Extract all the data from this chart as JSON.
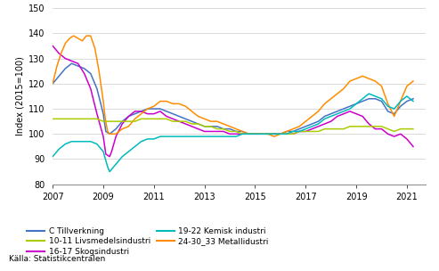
{
  "title": "",
  "ylabel": "Index (2015=100)",
  "xlabel": "",
  "source": "Källa: Statistikcentralen",
  "ylim": [
    80,
    150
  ],
  "yticks": [
    80,
    90,
    100,
    110,
    120,
    130,
    140,
    150
  ],
  "xlim": [
    2007.0,
    2021.75
  ],
  "xticks": [
    2007,
    2009,
    2011,
    2013,
    2015,
    2017,
    2019,
    2021
  ],
  "series": {
    "C Tillverkning": {
      "color": "#4472C4",
      "data": [
        [
          2007.0,
          120
        ],
        [
          2007.25,
          123
        ],
        [
          2007.5,
          126
        ],
        [
          2007.75,
          128
        ],
        [
          2008.0,
          127
        ],
        [
          2008.25,
          126
        ],
        [
          2008.5,
          124
        ],
        [
          2008.75,
          118
        ],
        [
          2009.0,
          108
        ],
        [
          2009.1,
          101
        ],
        [
          2009.25,
          100
        ],
        [
          2009.5,
          102
        ],
        [
          2009.75,
          105
        ],
        [
          2010.0,
          107
        ],
        [
          2010.25,
          108
        ],
        [
          2010.5,
          109
        ],
        [
          2010.75,
          110
        ],
        [
          2011.0,
          110
        ],
        [
          2011.25,
          110
        ],
        [
          2011.5,
          109
        ],
        [
          2011.75,
          108
        ],
        [
          2012.0,
          107
        ],
        [
          2012.25,
          106
        ],
        [
          2012.5,
          105
        ],
        [
          2012.75,
          104
        ],
        [
          2013.0,
          103
        ],
        [
          2013.25,
          103
        ],
        [
          2013.5,
          103
        ],
        [
          2013.75,
          102
        ],
        [
          2014.0,
          102
        ],
        [
          2014.25,
          101
        ],
        [
          2014.5,
          101
        ],
        [
          2014.75,
          100
        ],
        [
          2015.0,
          100
        ],
        [
          2015.25,
          100
        ],
        [
          2015.5,
          100
        ],
        [
          2015.75,
          100
        ],
        [
          2016.0,
          100
        ],
        [
          2016.25,
          101
        ],
        [
          2016.5,
          101
        ],
        [
          2016.75,
          102
        ],
        [
          2017.0,
          103
        ],
        [
          2017.25,
          104
        ],
        [
          2017.5,
          105
        ],
        [
          2017.75,
          107
        ],
        [
          2018.0,
          108
        ],
        [
          2018.25,
          109
        ],
        [
          2018.5,
          110
        ],
        [
          2018.75,
          111
        ],
        [
          2019.0,
          112
        ],
        [
          2019.25,
          113
        ],
        [
          2019.5,
          114
        ],
        [
          2019.75,
          114
        ],
        [
          2020.0,
          113
        ],
        [
          2020.25,
          109
        ],
        [
          2020.5,
          108
        ],
        [
          2020.75,
          111
        ],
        [
          2021.0,
          113
        ],
        [
          2021.25,
          114
        ]
      ]
    },
    "16-17 Skogsindustri": {
      "color": "#CC00CC",
      "data": [
        [
          2007.0,
          135
        ],
        [
          2007.25,
          132
        ],
        [
          2007.5,
          130
        ],
        [
          2007.75,
          129
        ],
        [
          2008.0,
          128
        ],
        [
          2008.25,
          124
        ],
        [
          2008.5,
          118
        ],
        [
          2008.75,
          108
        ],
        [
          2009.0,
          99
        ],
        [
          2009.1,
          92
        ],
        [
          2009.25,
          91
        ],
        [
          2009.33,
          93
        ],
        [
          2009.5,
          99
        ],
        [
          2009.75,
          104
        ],
        [
          2010.0,
          107
        ],
        [
          2010.25,
          109
        ],
        [
          2010.5,
          109
        ],
        [
          2010.75,
          108
        ],
        [
          2011.0,
          108
        ],
        [
          2011.25,
          109
        ],
        [
          2011.5,
          107
        ],
        [
          2011.75,
          106
        ],
        [
          2012.0,
          105
        ],
        [
          2012.25,
          104
        ],
        [
          2012.5,
          103
        ],
        [
          2012.75,
          102
        ],
        [
          2013.0,
          101
        ],
        [
          2013.25,
          101
        ],
        [
          2013.5,
          101
        ],
        [
          2013.75,
          101
        ],
        [
          2014.0,
          100
        ],
        [
          2014.25,
          100
        ],
        [
          2014.5,
          100
        ],
        [
          2014.75,
          100
        ],
        [
          2015.0,
          100
        ],
        [
          2015.25,
          100
        ],
        [
          2015.5,
          100
        ],
        [
          2015.75,
          100
        ],
        [
          2016.0,
          100
        ],
        [
          2016.25,
          100
        ],
        [
          2016.5,
          100
        ],
        [
          2016.75,
          101
        ],
        [
          2017.0,
          101
        ],
        [
          2017.25,
          102
        ],
        [
          2017.5,
          103
        ],
        [
          2017.75,
          104
        ],
        [
          2018.0,
          105
        ],
        [
          2018.25,
          107
        ],
        [
          2018.5,
          108
        ],
        [
          2018.75,
          109
        ],
        [
          2019.0,
          108
        ],
        [
          2019.25,
          107
        ],
        [
          2019.5,
          104
        ],
        [
          2019.75,
          102
        ],
        [
          2020.0,
          102
        ],
        [
          2020.25,
          100
        ],
        [
          2020.5,
          99
        ],
        [
          2020.75,
          100
        ],
        [
          2021.0,
          98
        ],
        [
          2021.25,
          95
        ]
      ]
    },
    "24-30_33 Metallidustri": {
      "color": "#FF8C00",
      "data": [
        [
          2007.0,
          120
        ],
        [
          2007.17,
          127
        ],
        [
          2007.33,
          132
        ],
        [
          2007.5,
          136
        ],
        [
          2007.67,
          138
        ],
        [
          2007.83,
          139
        ],
        [
          2008.0,
          138
        ],
        [
          2008.17,
          137
        ],
        [
          2008.33,
          139
        ],
        [
          2008.5,
          139
        ],
        [
          2008.67,
          134
        ],
        [
          2008.83,
          125
        ],
        [
          2009.0,
          113
        ],
        [
          2009.08,
          106
        ],
        [
          2009.17,
          101
        ],
        [
          2009.25,
          100
        ],
        [
          2009.5,
          100
        ],
        [
          2009.75,
          102
        ],
        [
          2010.0,
          103
        ],
        [
          2010.25,
          106
        ],
        [
          2010.5,
          108
        ],
        [
          2010.75,
          110
        ],
        [
          2011.0,
          111
        ],
        [
          2011.25,
          113
        ],
        [
          2011.5,
          113
        ],
        [
          2011.75,
          112
        ],
        [
          2012.0,
          112
        ],
        [
          2012.25,
          111
        ],
        [
          2012.5,
          109
        ],
        [
          2012.75,
          107
        ],
        [
          2013.0,
          106
        ],
        [
          2013.25,
          105
        ],
        [
          2013.5,
          105
        ],
        [
          2013.75,
          104
        ],
        [
          2014.0,
          103
        ],
        [
          2014.25,
          102
        ],
        [
          2014.5,
          101
        ],
        [
          2014.75,
          100
        ],
        [
          2015.0,
          100
        ],
        [
          2015.25,
          100
        ],
        [
          2015.5,
          100
        ],
        [
          2015.75,
          99
        ],
        [
          2016.0,
          100
        ],
        [
          2016.25,
          101
        ],
        [
          2016.5,
          102
        ],
        [
          2016.75,
          103
        ],
        [
          2017.0,
          105
        ],
        [
          2017.25,
          107
        ],
        [
          2017.5,
          109
        ],
        [
          2017.75,
          112
        ],
        [
          2018.0,
          114
        ],
        [
          2018.25,
          116
        ],
        [
          2018.5,
          118
        ],
        [
          2018.75,
          121
        ],
        [
          2019.0,
          122
        ],
        [
          2019.25,
          123
        ],
        [
          2019.5,
          122
        ],
        [
          2019.75,
          121
        ],
        [
          2020.0,
          119
        ],
        [
          2020.25,
          112
        ],
        [
          2020.5,
          107
        ],
        [
          2020.75,
          113
        ],
        [
          2021.0,
          119
        ],
        [
          2021.25,
          121
        ]
      ]
    },
    "10-11 Livsmedelsindustri": {
      "color": "#AACC00",
      "data": [
        [
          2007.0,
          106
        ],
        [
          2007.25,
          106
        ],
        [
          2007.5,
          106
        ],
        [
          2007.75,
          106
        ],
        [
          2008.0,
          106
        ],
        [
          2008.25,
          106
        ],
        [
          2008.5,
          106
        ],
        [
          2008.75,
          106
        ],
        [
          2009.0,
          105
        ],
        [
          2009.25,
          105
        ],
        [
          2009.5,
          105
        ],
        [
          2009.75,
          105
        ],
        [
          2010.0,
          105
        ],
        [
          2010.25,
          105
        ],
        [
          2010.5,
          106
        ],
        [
          2010.75,
          106
        ],
        [
          2011.0,
          106
        ],
        [
          2011.25,
          106
        ],
        [
          2011.5,
          106
        ],
        [
          2011.75,
          105
        ],
        [
          2012.0,
          105
        ],
        [
          2012.25,
          105
        ],
        [
          2012.5,
          104
        ],
        [
          2012.75,
          104
        ],
        [
          2013.0,
          103
        ],
        [
          2013.25,
          103
        ],
        [
          2013.5,
          102
        ],
        [
          2013.75,
          102
        ],
        [
          2014.0,
          101
        ],
        [
          2014.25,
          101
        ],
        [
          2014.5,
          100
        ],
        [
          2014.75,
          100
        ],
        [
          2015.0,
          100
        ],
        [
          2015.25,
          100
        ],
        [
          2015.5,
          100
        ],
        [
          2015.75,
          100
        ],
        [
          2016.0,
          100
        ],
        [
          2016.25,
          100
        ],
        [
          2016.5,
          100
        ],
        [
          2016.75,
          101
        ],
        [
          2017.0,
          101
        ],
        [
          2017.25,
          101
        ],
        [
          2017.5,
          101
        ],
        [
          2017.75,
          102
        ],
        [
          2018.0,
          102
        ],
        [
          2018.25,
          102
        ],
        [
          2018.5,
          102
        ],
        [
          2018.75,
          103
        ],
        [
          2019.0,
          103
        ],
        [
          2019.25,
          103
        ],
        [
          2019.5,
          103
        ],
        [
          2019.75,
          103
        ],
        [
          2020.0,
          103
        ],
        [
          2020.25,
          102
        ],
        [
          2020.5,
          101
        ],
        [
          2020.75,
          102
        ],
        [
          2021.0,
          102
        ],
        [
          2021.25,
          102
        ]
      ]
    },
    "19-22 Kemisk industri": {
      "color": "#00BBBB",
      "data": [
        [
          2007.0,
          91
        ],
        [
          2007.25,
          94
        ],
        [
          2007.5,
          96
        ],
        [
          2007.75,
          97
        ],
        [
          2008.0,
          97
        ],
        [
          2008.25,
          97
        ],
        [
          2008.5,
          97
        ],
        [
          2008.75,
          96
        ],
        [
          2009.0,
          93
        ],
        [
          2009.17,
          87
        ],
        [
          2009.25,
          85
        ],
        [
          2009.5,
          88
        ],
        [
          2009.75,
          91
        ],
        [
          2010.0,
          93
        ],
        [
          2010.25,
          95
        ],
        [
          2010.5,
          97
        ],
        [
          2010.75,
          98
        ],
        [
          2011.0,
          98
        ],
        [
          2011.25,
          99
        ],
        [
          2011.5,
          99
        ],
        [
          2011.75,
          99
        ],
        [
          2012.0,
          99
        ],
        [
          2012.25,
          99
        ],
        [
          2012.5,
          99
        ],
        [
          2012.75,
          99
        ],
        [
          2013.0,
          99
        ],
        [
          2013.25,
          99
        ],
        [
          2013.5,
          99
        ],
        [
          2013.75,
          99
        ],
        [
          2014.0,
          99
        ],
        [
          2014.25,
          99
        ],
        [
          2014.5,
          100
        ],
        [
          2014.75,
          100
        ],
        [
          2015.0,
          100
        ],
        [
          2015.25,
          100
        ],
        [
          2015.5,
          100
        ],
        [
          2015.75,
          100
        ],
        [
          2016.0,
          100
        ],
        [
          2016.25,
          100
        ],
        [
          2016.5,
          101
        ],
        [
          2016.75,
          101
        ],
        [
          2017.0,
          102
        ],
        [
          2017.25,
          103
        ],
        [
          2017.5,
          104
        ],
        [
          2017.75,
          106
        ],
        [
          2018.0,
          107
        ],
        [
          2018.25,
          108
        ],
        [
          2018.5,
          109
        ],
        [
          2018.75,
          110
        ],
        [
          2019.0,
          112
        ],
        [
          2019.25,
          114
        ],
        [
          2019.5,
          116
        ],
        [
          2019.75,
          115
        ],
        [
          2020.0,
          114
        ],
        [
          2020.25,
          111
        ],
        [
          2020.5,
          110
        ],
        [
          2020.75,
          113
        ],
        [
          2021.0,
          115
        ],
        [
          2021.25,
          113
        ]
      ]
    }
  },
  "legend_entries": [
    {
      "label": "C Tillverkning",
      "color": "#4472C4"
    },
    {
      "label": "10-11 Livsmedelsindustri",
      "color": "#AACC00"
    },
    {
      "label": "16-17 Skogsindustri",
      "color": "#CC00CC"
    },
    {
      "label": "19-22 Kemisk industri",
      "color": "#00BBBB"
    },
    {
      "label": "24-30_33 Metallidustri",
      "color": "#FF8C00"
    }
  ],
  "background_color": "#ffffff",
  "grid_color": "#cccccc"
}
